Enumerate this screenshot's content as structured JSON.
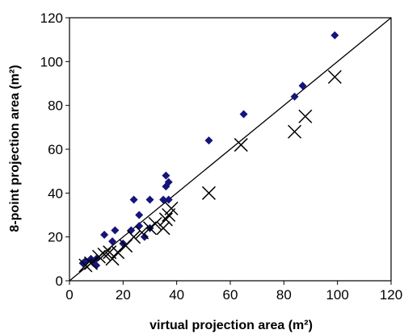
{
  "chart_data": {
    "type": "scatter",
    "title": "",
    "xlabel": "virtual projection area (m²)",
    "ylabel": "8-point projection area (m²)",
    "xlim": [
      0,
      120
    ],
    "ylim": [
      0,
      120
    ],
    "xticks": [
      "0",
      "20",
      "40",
      "60",
      "80",
      "100",
      "120"
    ],
    "yticks": [
      "0",
      "20",
      "40",
      "60",
      "80",
      "100",
      "120"
    ],
    "grid": false,
    "legend": "none",
    "reference_line": {
      "from": [
        0,
        0
      ],
      "to": [
        120,
        120
      ],
      "color": "#000000"
    },
    "series": [
      {
        "marker": "diamond",
        "color": "#14147a",
        "points": [
          [
            5,
            8
          ],
          [
            6,
            9
          ],
          [
            8,
            10
          ],
          [
            9,
            8
          ],
          [
            10,
            7
          ],
          [
            10,
            10
          ],
          [
            13,
            21
          ],
          [
            16,
            18
          ],
          [
            17,
            23
          ],
          [
            20,
            17
          ],
          [
            23,
            23
          ],
          [
            24,
            37
          ],
          [
            26,
            30
          ],
          [
            26,
            25
          ],
          [
            28,
            20
          ],
          [
            30,
            37
          ],
          [
            30,
            24
          ],
          [
            35,
            37
          ],
          [
            36,
            48
          ],
          [
            36,
            43
          ],
          [
            37,
            37
          ],
          [
            37,
            45
          ],
          [
            52,
            64
          ],
          [
            65,
            76
          ],
          [
            84,
            84
          ],
          [
            87,
            89
          ],
          [
            99,
            112
          ]
        ]
      },
      {
        "marker": "x",
        "color": "#000000",
        "points": [
          [
            6,
            7
          ],
          [
            8,
            8
          ],
          [
            11,
            11
          ],
          [
            13,
            12
          ],
          [
            15,
            13
          ],
          [
            16,
            10
          ],
          [
            18,
            13
          ],
          [
            21,
            16
          ],
          [
            24,
            20
          ],
          [
            27,
            22
          ],
          [
            30,
            24
          ],
          [
            32,
            26
          ],
          [
            35,
            24
          ],
          [
            36,
            28
          ],
          [
            37,
            30
          ],
          [
            38,
            33
          ],
          [
            52,
            40
          ],
          [
            64,
            62
          ],
          [
            84,
            68
          ],
          [
            88,
            75
          ],
          [
            99,
            93
          ]
        ]
      }
    ]
  }
}
